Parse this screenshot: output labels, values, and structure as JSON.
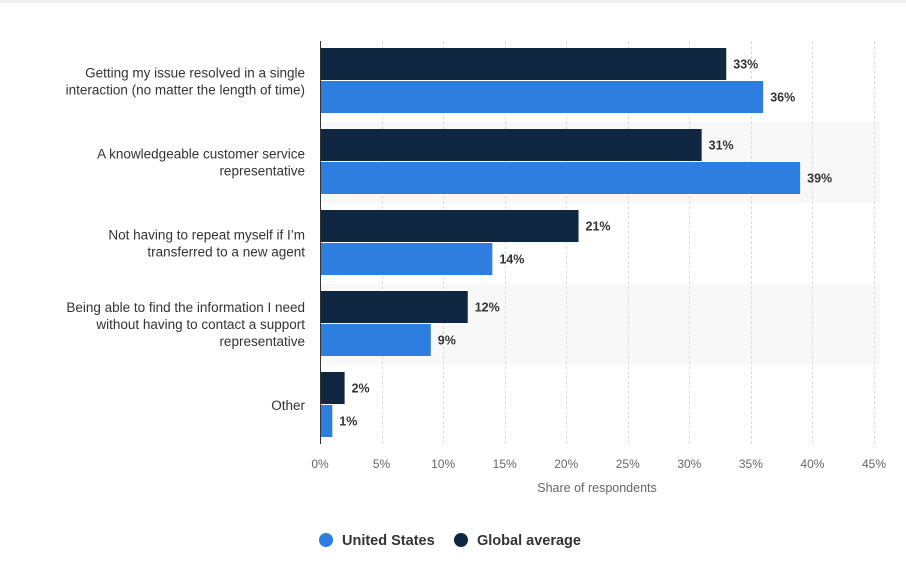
{
  "chart_data": {
    "type": "bar",
    "orientation": "horizontal",
    "categories": [
      [
        "Getting my issue resolved in a single",
        "interaction (no matter the length of time)"
      ],
      [
        "A knowledgeable customer service",
        "representative"
      ],
      [
        "Not having to repeat myself if I’m",
        "transferred to a new agent"
      ],
      [
        "Being able to find the information I need",
        "without having to contact a support",
        "representative"
      ],
      [
        "Other"
      ]
    ],
    "series": [
      {
        "name": "Global average",
        "color": "#0f2741",
        "values": [
          33,
          31,
          21,
          12,
          2
        ],
        "labels": [
          "33%",
          "31%",
          "21%",
          "12%",
          "2%"
        ]
      },
      {
        "name": "United States",
        "color": "#2e7ee0",
        "values": [
          36,
          39,
          14,
          9,
          1
        ],
        "labels": [
          "36%",
          "39%",
          "14%",
          "9%",
          "1%"
        ]
      }
    ],
    "xlim": [
      0,
      45
    ],
    "xticks": [
      0,
      5,
      10,
      15,
      20,
      25,
      30,
      35,
      40,
      45
    ],
    "xtick_labels": [
      "0%",
      "5%",
      "10%",
      "15%",
      "20%",
      "25%",
      "30%",
      "35%",
      "40%",
      "45%"
    ],
    "xlabel": "Share of respondents",
    "grid": true,
    "legend": {
      "placement": "bottom-center",
      "items": [
        {
          "name": "United States",
          "color": "#2e7ee0"
        },
        {
          "name": "Global average",
          "color": "#0f2741"
        }
      ]
    }
  }
}
